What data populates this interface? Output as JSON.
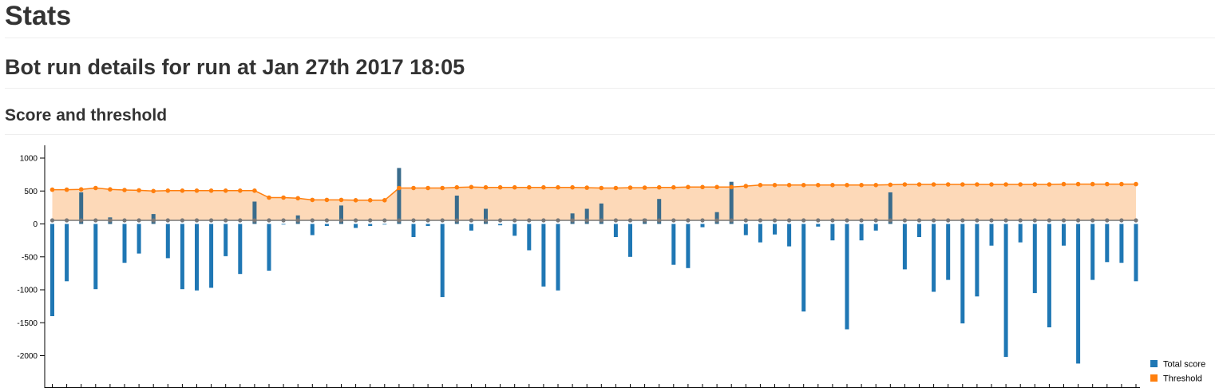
{
  "page": {
    "title": "Stats",
    "subtitle": "Bot run details for run at Jan 27th 2017 18:05",
    "section": "Score and threshold"
  },
  "chart_data": {
    "type": "bar",
    "title": "Score and threshold",
    "ylim": [
      -2350,
      1150
    ],
    "yticks": [
      1000,
      500,
      0,
      -500,
      -1000,
      -1500,
      -2000
    ],
    "grid": false,
    "legend_position": "bottom-right",
    "colors": {
      "score": "#1f77b4",
      "score_above": "#3a6c8c",
      "threshold": "#ff7f0e",
      "band": "#fdd9b8",
      "baseline": "#777777"
    },
    "series": [
      {
        "name": "Total score",
        "kind": "bar",
        "values": [
          -1400,
          -870,
          480,
          -990,
          100,
          -590,
          -450,
          150,
          -520,
          -990,
          -1010,
          -970,
          -490,
          -760,
          340,
          -710,
          0,
          130,
          -170,
          -30,
          280,
          -60,
          -30,
          -10,
          850,
          -200,
          -30,
          -1110,
          430,
          -100,
          230,
          -20,
          -180,
          -400,
          -950,
          -1010,
          160,
          230,
          310,
          -200,
          -500,
          80,
          380,
          -620,
          -670,
          -50,
          180,
          640,
          -170,
          -280,
          -160,
          -340,
          -1330,
          -40,
          -250,
          -1600,
          -250,
          -100,
          480,
          -690,
          -200,
          -1030,
          -850,
          -1510,
          -1100,
          -330,
          -2020,
          -280,
          -1050,
          -1570,
          -330,
          -2120,
          -850,
          -580,
          -590,
          -870
        ]
      },
      {
        "name": "Threshold",
        "kind": "line",
        "values": [
          520,
          520,
          525,
          545,
          525,
          515,
          510,
          500,
          505,
          505,
          505,
          505,
          505,
          505,
          505,
          400,
          400,
          390,
          365,
          365,
          365,
          360,
          360,
          360,
          545,
          545,
          545,
          545,
          555,
          560,
          555,
          555,
          555,
          555,
          555,
          555,
          555,
          550,
          545,
          545,
          550,
          550,
          555,
          555,
          560,
          560,
          560,
          560,
          575,
          590,
          590,
          590,
          590,
          590,
          590,
          590,
          590,
          590,
          595,
          600,
          600,
          600,
          600,
          600,
          600,
          600,
          600,
          600,
          600,
          600,
          605,
          605,
          605,
          605,
          605,
          605
        ]
      },
      {
        "name": "Baseline",
        "kind": "points",
        "values": [
          55,
          55,
          55,
          55,
          55,
          55,
          55,
          55,
          55,
          55,
          55,
          55,
          55,
          55,
          55,
          55,
          55,
          55,
          55,
          55,
          55,
          55,
          55,
          55,
          55,
          55,
          55,
          55,
          55,
          55,
          55,
          55,
          55,
          55,
          55,
          55,
          55,
          55,
          55,
          55,
          55,
          55,
          55,
          55,
          55,
          55,
          55,
          55,
          55,
          55,
          55,
          55,
          55,
          55,
          55,
          55,
          55,
          55,
          55,
          55,
          55,
          55,
          55,
          55,
          55,
          55,
          55,
          55,
          55,
          55,
          55,
          55,
          55,
          55,
          55,
          55
        ]
      }
    ],
    "legend": [
      {
        "label": "Total score",
        "color": "#1f77b4"
      },
      {
        "label": "Threshold",
        "color": "#ff7f0e"
      }
    ]
  }
}
